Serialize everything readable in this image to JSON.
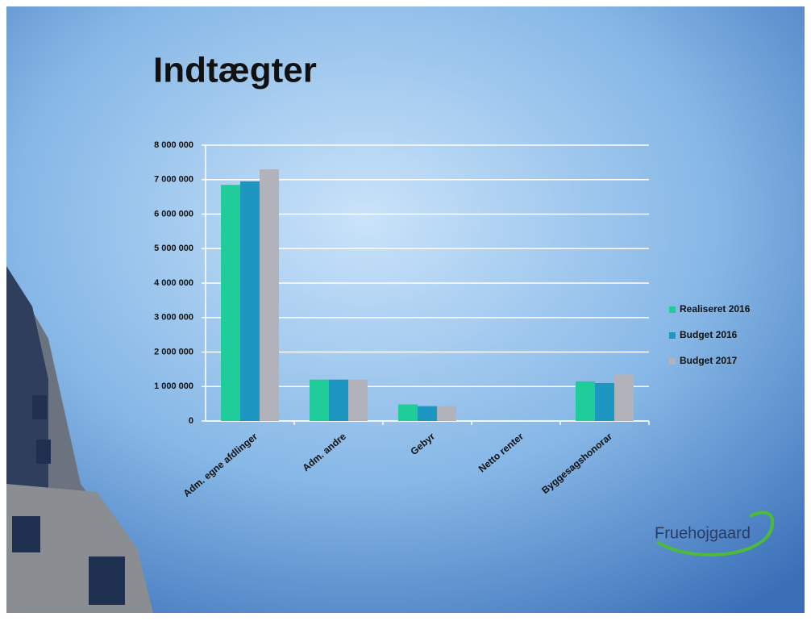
{
  "chart_data": {
    "type": "bar",
    "title": "Indtægter",
    "categories": [
      "Adm. egne afdlinger",
      "Adm. andre",
      "Gebyr",
      "Netto renter",
      "Byggesagshonorar"
    ],
    "series": [
      {
        "name": "Realiseret 2016",
        "color": "#1fcc9a",
        "values": [
          6850000,
          1200000,
          480000,
          0,
          1150000
        ]
      },
      {
        "name": "Budget 2016",
        "color": "#1e96c2",
        "values": [
          6950000,
          1200000,
          430000,
          0,
          1100000
        ]
      },
      {
        "name": "Budget 2017",
        "color": "#b2b2ba",
        "values": [
          7300000,
          1200000,
          430000,
          0,
          1350000
        ]
      }
    ],
    "ylim": [
      0,
      8000000
    ],
    "yticks": [
      0,
      {
        "value": 1000000,
        "label": "1 000 000"
      },
      {
        "value": 2000000,
        "label": "2 000 000"
      },
      {
        "value": 3000000,
        "label": "3 000 000"
      },
      {
        "value": 4000000,
        "label": "4 000 000"
      },
      {
        "value": 5000000,
        "label": "5 000 000"
      },
      {
        "value": 6000000,
        "label": "6 000 000"
      },
      {
        "value": 7000000,
        "label": "7 000 000"
      },
      {
        "value": 8000000,
        "label": "8 000 000"
      }
    ],
    "grid": true,
    "legend": "right"
  },
  "logo": "Fruehojgaard"
}
